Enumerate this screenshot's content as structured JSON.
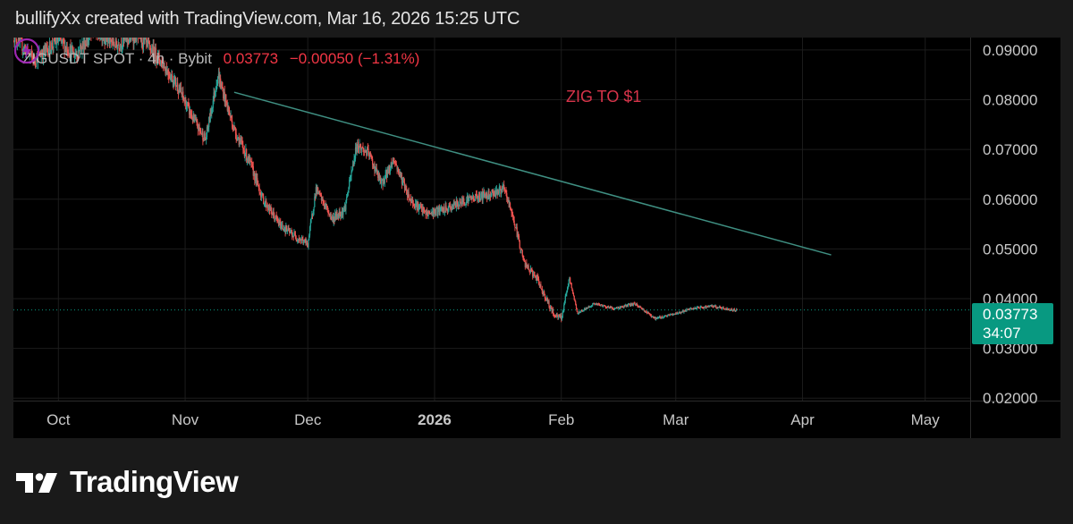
{
  "header": {
    "caption": "bullifyXx created with TradingView.com, Mar 16, 2026 15:25 UTC"
  },
  "symbol": {
    "name": "ZIGUSDT SPOT · 4h · Bybit",
    "price": "0.03773",
    "change": "−0.00050 (−1.31%)"
  },
  "annotation": {
    "text": "ZIG TO $1"
  },
  "price_tag": {
    "price": "0.03773",
    "countdown": "34:07"
  },
  "footer": {
    "brand": "TradingView"
  },
  "colors": {
    "up": "#26a69a",
    "down": "#ef5350",
    "trendline": "#3f8f82",
    "annotation": "#d8344a",
    "price_tag": "#089981",
    "lightning": "#9c27b0"
  },
  "chart_data": {
    "type": "candlestick",
    "title": "ZIGUSDT SPOT · 4h · Bybit",
    "x_ticks": [
      {
        "label": "Oct",
        "date": "2025-10-01"
      },
      {
        "label": "Nov",
        "date": "2025-11-01"
      },
      {
        "label": "Dec",
        "date": "2025-12-01"
      },
      {
        "label": "2026",
        "date": "2026-01-01",
        "bold": true
      },
      {
        "label": "Feb",
        "date": "2026-02-01"
      },
      {
        "label": "Mar",
        "date": "2026-03-01"
      },
      {
        "label": "Apr",
        "date": "2026-04-01"
      },
      {
        "label": "May",
        "date": "2026-05-01"
      }
    ],
    "y_ticks": [
      "0.09000",
      "0.08000",
      "0.07000",
      "0.06000",
      "0.05000",
      "0.04000",
      "0.03000",
      "0.02000"
    ],
    "ylim": [
      0.0195,
      0.0925
    ],
    "xlim": [
      "2025-09-20",
      "2026-05-12"
    ],
    "last_price": 0.03773,
    "price_path": [
      [
        "2025-09-20",
        0.093
      ],
      [
        "2025-09-25",
        0.088
      ],
      [
        "2025-10-01",
        0.092
      ],
      [
        "2025-10-05",
        0.089
      ],
      [
        "2025-10-10",
        0.094
      ],
      [
        "2025-10-15",
        0.091
      ],
      [
        "2025-10-20",
        0.093
      ],
      [
        "2025-10-25",
        0.089
      ],
      [
        "2025-10-30",
        0.083
      ],
      [
        "2025-11-03",
        0.076
      ],
      [
        "2025-11-06",
        0.072
      ],
      [
        "2025-11-09",
        0.085
      ],
      [
        "2025-11-13",
        0.074
      ],
      [
        "2025-11-17",
        0.067
      ],
      [
        "2025-11-20",
        0.06
      ],
      [
        "2025-11-24",
        0.055
      ],
      [
        "2025-11-27",
        0.053
      ],
      [
        "2025-12-01",
        0.051
      ],
      [
        "2025-12-03",
        0.062
      ],
      [
        "2025-12-07",
        0.056
      ],
      [
        "2025-12-10",
        0.058
      ],
      [
        "2025-12-13",
        0.071
      ],
      [
        "2025-12-16",
        0.069
      ],
      [
        "2025-12-19",
        0.063
      ],
      [
        "2025-12-22",
        0.068
      ],
      [
        "2025-12-26",
        0.06
      ],
      [
        "2025-12-30",
        0.057
      ],
      [
        "2026-01-04",
        0.058
      ],
      [
        "2026-01-09",
        0.06
      ],
      [
        "2026-01-14",
        0.061
      ],
      [
        "2026-01-18",
        0.062
      ],
      [
        "2026-01-20",
        0.057
      ],
      [
        "2026-01-23",
        0.047
      ],
      [
        "2026-01-26",
        0.044
      ],
      [
        "2026-01-30",
        0.037
      ],
      [
        "2026-02-01",
        0.036
      ],
      [
        "2026-02-03",
        0.044
      ],
      [
        "2026-02-05",
        0.037
      ],
      [
        "2026-02-09",
        0.039
      ],
      [
        "2026-02-14",
        0.038
      ],
      [
        "2026-02-19",
        0.039
      ],
      [
        "2026-02-24",
        0.036
      ],
      [
        "2026-03-01",
        0.037
      ],
      [
        "2026-03-05",
        0.038
      ],
      [
        "2026-03-10",
        0.0385
      ],
      [
        "2026-03-14",
        0.0378
      ],
      [
        "2026-03-16",
        0.03773
      ]
    ],
    "trendline": [
      {
        "date": "2025-11-13",
        "price": 0.0815
      },
      {
        "date": "2026-04-08",
        "price": 0.0488
      }
    ]
  }
}
